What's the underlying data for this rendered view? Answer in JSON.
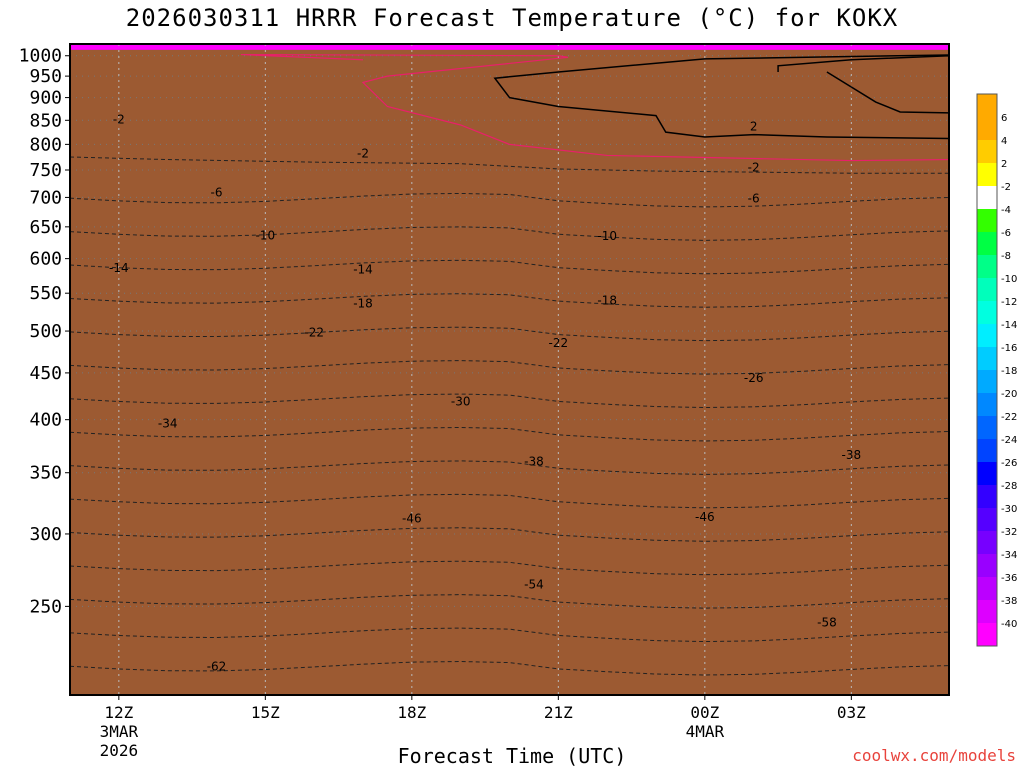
{
  "chart_data": {
    "type": "heatmap",
    "title": "2026030311 HRRR Forecast Temperature (°C) for KOKX",
    "xlabel": "Forecast Time (UTC)",
    "y_axis_ticks": [
      250,
      300,
      350,
      400,
      450,
      500,
      550,
      600,
      650,
      700,
      750,
      800,
      850,
      900,
      950,
      1000
    ],
    "ylim": [
      1030,
      200
    ],
    "y_scale": "log",
    "x_axis_ticks": [
      {
        "hours": 1,
        "label": "12Z",
        "sub1": "3MAR",
        "sub2": "2026"
      },
      {
        "hours": 4,
        "label": "15Z",
        "sub1": "",
        "sub2": ""
      },
      {
        "hours": 7,
        "label": "18Z",
        "sub1": "",
        "sub2": ""
      },
      {
        "hours": 10,
        "label": "21Z",
        "sub1": "",
        "sub2": ""
      },
      {
        "hours": 13,
        "label": "00Z",
        "sub1": "4MAR",
        "sub2": ""
      },
      {
        "hours": 16,
        "label": "03Z",
        "sub1": "",
        "sub2": ""
      }
    ],
    "xlim": [
      0,
      18
    ],
    "grid": true,
    "contour_interval": 4,
    "colorbar_levels": [
      6,
      4,
      2,
      -2,
      -4,
      -6,
      -8,
      -10,
      -12,
      -14,
      -16,
      -18,
      -20,
      -22,
      -24,
      -26,
      -28,
      -30,
      -32,
      -34,
      -36,
      -38,
      -40
    ],
    "colorbar_colors": [
      "#ffaa00",
      "#ffcc00",
      "#ffff00",
      "#ffffff",
      "#33ff00",
      "#00ff44",
      "#00ff88",
      "#00ffbb",
      "#00ffe0",
      "#00eeff",
      "#00ccff",
      "#00aaff",
      "#0088ff",
      "#0066ff",
      "#0044ff",
      "#0000ff",
      "#3300ff",
      "#5500ff",
      "#7700ff",
      "#9900ff",
      "#bb00ff",
      "#dd00ff",
      "#ff00ff"
    ],
    "contour_labels": [
      {
        "t": 3,
        "p": 215,
        "label": "-62"
      },
      {
        "t": 15.5,
        "p": 240,
        "label": "-58"
      },
      {
        "t": 9.5,
        "p": 264,
        "label": "-54"
      },
      {
        "t": 7,
        "p": 312,
        "label": "-46"
      },
      {
        "t": 13,
        "p": 313,
        "label": "-46"
      },
      {
        "t": 9.5,
        "p": 360,
        "label": "-38"
      },
      {
        "t": 16,
        "p": 366,
        "label": "-38"
      },
      {
        "t": 2,
        "p": 396,
        "label": "-34"
      },
      {
        "t": 8,
        "p": 419,
        "label": "-30"
      },
      {
        "t": 14,
        "p": 444,
        "label": "-26"
      },
      {
        "t": 5,
        "p": 498,
        "label": "-22"
      },
      {
        "t": 10,
        "p": 485,
        "label": "-22"
      },
      {
        "t": 6,
        "p": 536,
        "label": "-18"
      },
      {
        "t": 11,
        "p": 540,
        "label": "-18"
      },
      {
        "t": 1,
        "p": 586,
        "label": "-14"
      },
      {
        "t": 6,
        "p": 584,
        "label": "-14"
      },
      {
        "t": 4,
        "p": 636,
        "label": "-10"
      },
      {
        "t": 11,
        "p": 635,
        "label": "-10"
      },
      {
        "t": 3,
        "p": 709,
        "label": "-6"
      },
      {
        "t": 14,
        "p": 698,
        "label": "-6"
      },
      {
        "t": 6,
        "p": 782,
        "label": "-2"
      },
      {
        "t": 14,
        "p": 755,
        "label": "-2"
      },
      {
        "t": 1,
        "p": 852,
        "label": "-2"
      },
      {
        "t": 14,
        "p": 837,
        "label": "2"
      }
    ],
    "colorbar_title": "",
    "ylabel": ""
  },
  "credit": "coolwx.com/models",
  "colors": {
    "frame": "#000000",
    "ground": "#9c5a32",
    "freezing_line": "#e8206a",
    "credit": "#e8433c"
  }
}
